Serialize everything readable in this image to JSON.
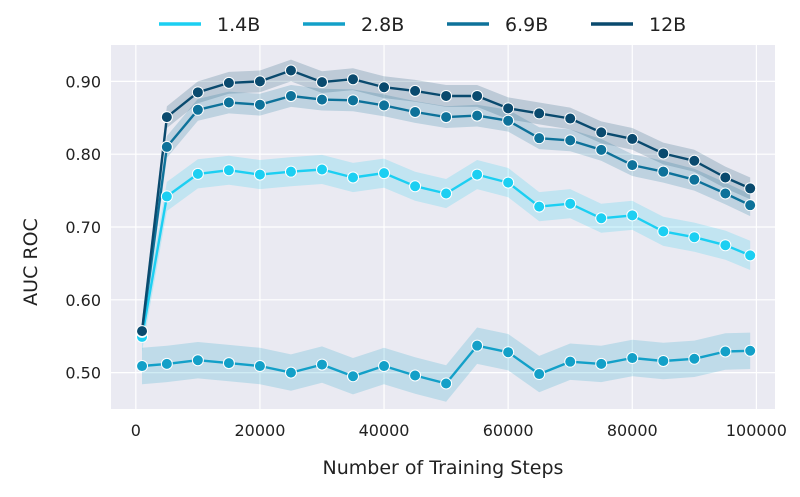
{
  "chart_data": {
    "type": "line",
    "title": "",
    "xlabel": "Number of Training Steps",
    "ylabel": "AUC ROC",
    "xlim": [
      -4000,
      103000
    ],
    "ylim": [
      0.45,
      0.95
    ],
    "xticks": [
      0,
      20000,
      40000,
      60000,
      80000,
      100000
    ],
    "yticks": [
      0.5,
      0.6,
      0.7,
      0.8,
      0.9
    ],
    "xtick_labels": [
      "0",
      "20000",
      "40000",
      "60000",
      "80000",
      "100000"
    ],
    "ytick_labels": [
      "0.50",
      "0.60",
      "0.70",
      "0.80",
      "0.90"
    ],
    "grid": true,
    "legend_position": "top",
    "x": [
      1000,
      5000,
      10000,
      15000,
      20000,
      25000,
      30000,
      35000,
      40000,
      45000,
      50000,
      55000,
      60000,
      65000,
      70000,
      75000,
      80000,
      85000,
      90000,
      95000,
      99000
    ],
    "series": [
      {
        "name": "1.4B",
        "color": "#1ccff2",
        "values": [
          0.549,
          0.742,
          0.773,
          0.778,
          0.772,
          0.776,
          0.779,
          0.768,
          0.774,
          0.756,
          0.746,
          0.772,
          0.761,
          0.728,
          0.732,
          0.712,
          0.716,
          0.694,
          0.686,
          0.675,
          0.661
        ],
        "band": [
          0.02,
          0.02,
          0.02,
          0.02,
          0.02,
          0.02,
          0.02,
          0.02,
          0.02,
          0.02,
          0.02,
          0.02,
          0.02,
          0.02,
          0.02,
          0.02,
          0.02,
          0.02,
          0.02,
          0.02,
          0.02
        ]
      },
      {
        "name": "2.8B",
        "color": "#13a0c8",
        "values": [
          0.509,
          0.512,
          0.517,
          0.513,
          0.509,
          0.5,
          0.511,
          0.495,
          0.509,
          0.496,
          0.485,
          0.537,
          0.528,
          0.498,
          0.515,
          0.512,
          0.52,
          0.516,
          0.519,
          0.529,
          0.53
        ],
        "band": [
          0.025,
          0.025,
          0.025,
          0.025,
          0.025,
          0.025,
          0.025,
          0.025,
          0.025,
          0.025,
          0.025,
          0.025,
          0.025,
          0.025,
          0.025,
          0.025,
          0.025,
          0.025,
          0.025,
          0.025,
          0.025
        ]
      },
      {
        "name": "6.9B",
        "color": "#0e729a",
        "values": [
          0.556,
          0.81,
          0.861,
          0.871,
          0.868,
          0.88,
          0.875,
          0.874,
          0.867,
          0.858,
          0.851,
          0.853,
          0.846,
          0.822,
          0.819,
          0.806,
          0.785,
          0.776,
          0.765,
          0.746,
          0.73
        ],
        "band": [
          0.015,
          0.015,
          0.015,
          0.015,
          0.015,
          0.015,
          0.015,
          0.015,
          0.015,
          0.015,
          0.015,
          0.015,
          0.015,
          0.015,
          0.015,
          0.015,
          0.015,
          0.015,
          0.015,
          0.015,
          0.015
        ]
      },
      {
        "name": "12B",
        "color": "#0a4a6e",
        "values": [
          0.557,
          0.851,
          0.885,
          0.898,
          0.9,
          0.915,
          0.899,
          0.903,
          0.892,
          0.887,
          0.88,
          0.88,
          0.863,
          0.856,
          0.849,
          0.83,
          0.821,
          0.801,
          0.791,
          0.768,
          0.753
        ],
        "band": [
          0.015,
          0.015,
          0.015,
          0.015,
          0.015,
          0.015,
          0.015,
          0.015,
          0.015,
          0.015,
          0.015,
          0.015,
          0.015,
          0.015,
          0.015,
          0.015,
          0.015,
          0.015,
          0.015,
          0.015,
          0.015
        ]
      }
    ]
  }
}
